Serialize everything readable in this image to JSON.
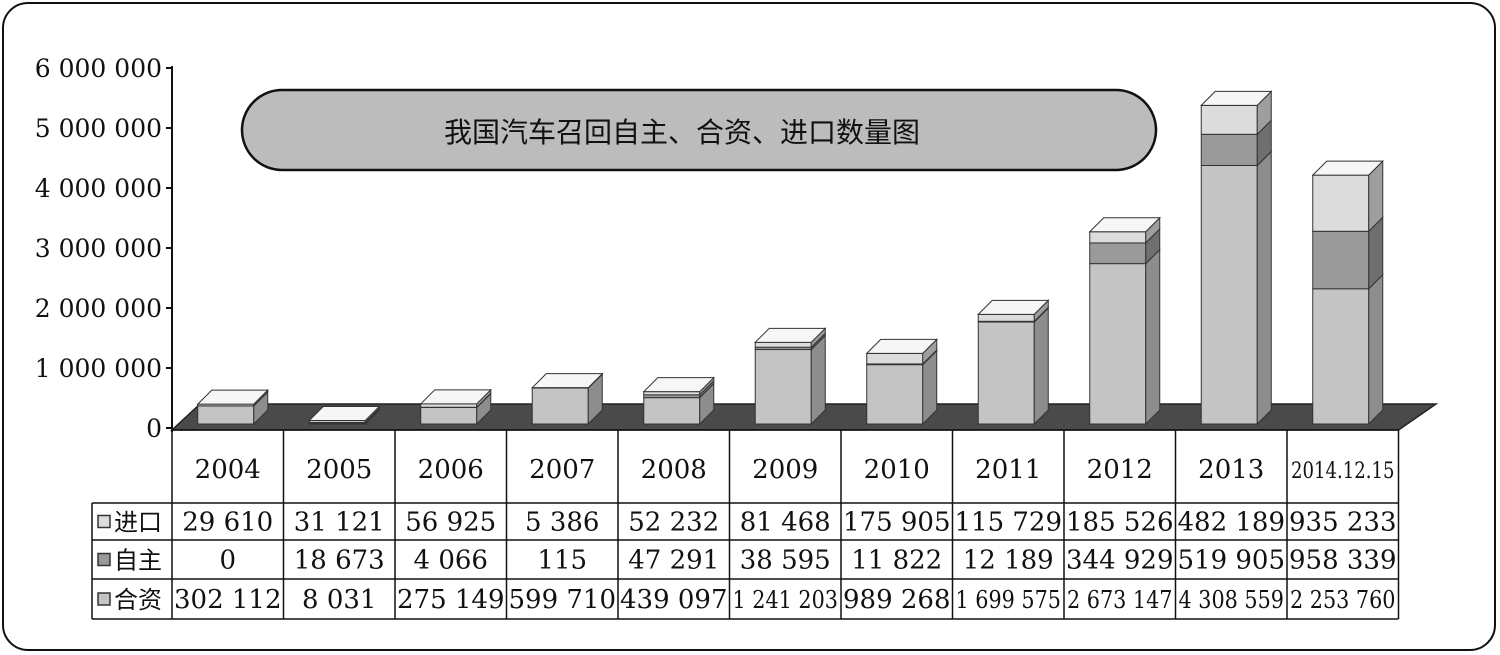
{
  "chart_data": {
    "type": "bar",
    "stacked": true,
    "title": "我国汽车召回自主、合资、进口数量图",
    "categories": [
      "2004",
      "2005",
      "2006",
      "2007",
      "2008",
      "2009",
      "2010",
      "2011",
      "2012",
      "2013",
      "2014.12.15"
    ],
    "yticks": [
      "6 000 000",
      "5 000 000",
      "4 000 000",
      "3 000 000",
      "2 000 000",
      "1 000 000",
      "0"
    ],
    "ylim": [
      0,
      6000000
    ],
    "grid": false,
    "legend": "table-left",
    "series": [
      {
        "name": "进口",
        "values": [
          29610,
          31121,
          56925,
          5386,
          52232,
          81468,
          175905,
          115729,
          185526,
          482189,
          935233
        ],
        "labels": [
          "29 610",
          "31 121",
          "56 925",
          "5 386",
          "52 232",
          "81 468",
          "175 905",
          "115 729",
          "185 526",
          "482 189",
          "935 233"
        ],
        "color": "#dcdcdc"
      },
      {
        "name": "自主",
        "values": [
          0,
          18673,
          4066,
          115,
          47291,
          38595,
          11822,
          12189,
          344929,
          519905,
          958339
        ],
        "labels": [
          "0",
          "18 673",
          "4 066",
          "115",
          "47 291",
          "38 595",
          "11 822",
          "12 189",
          "344 929",
          "519 905",
          "958 339"
        ],
        "color": "#9a9a9a"
      },
      {
        "name": "合资",
        "values": [
          302112,
          8031,
          275149,
          599710,
          439097,
          1241203,
          989268,
          1699575,
          2673147,
          4308559,
          2253760
        ],
        "labels": [
          "302 112",
          "8 031",
          "275 149",
          "599 710",
          "439 097",
          "1 241 203",
          "989 268",
          "1 699 575",
          "2 673 147",
          "4 308 559",
          "2 253 760"
        ],
        "color": "#c4c4c4"
      }
    ]
  }
}
